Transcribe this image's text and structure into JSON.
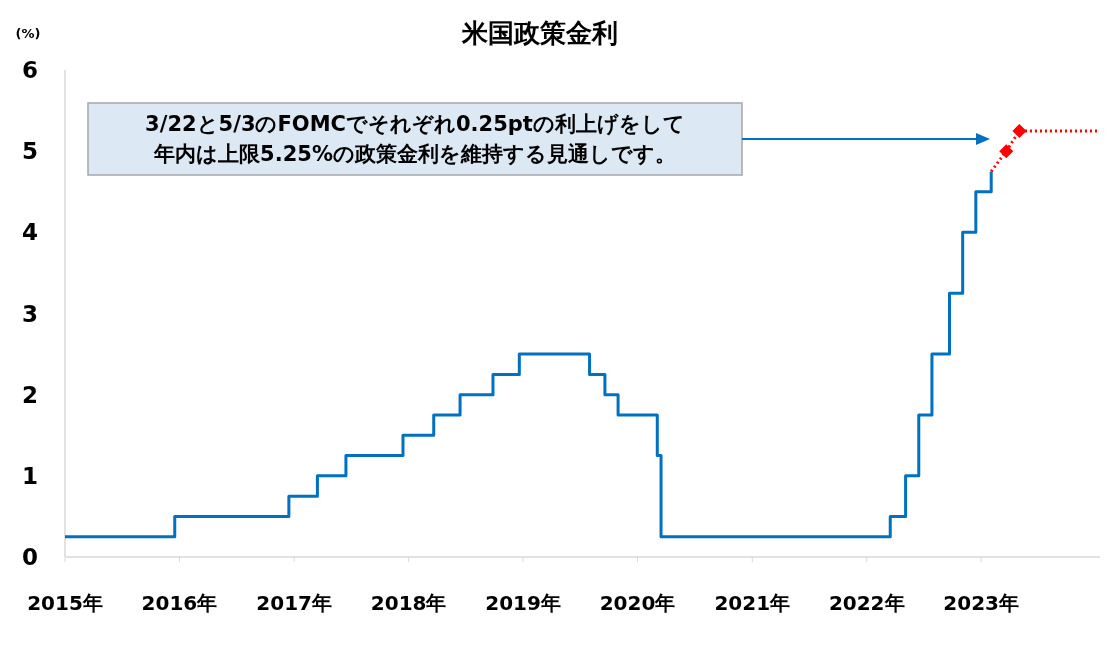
{
  "chart_data": {
    "type": "line",
    "title": "米国政策金利",
    "ylabel": "(%)",
    "annotations": [
      "3/22と5/3のFOMCでそれぞれ0.25ptの利上げをして",
      "年内は上限5.25%の政策金利を維持する見通しです。"
    ],
    "xlim": [
      "2015-01-01",
      "2024-01-15"
    ],
    "ylim": [
      0,
      6
    ],
    "yticks": [
      0,
      1,
      2,
      3,
      4,
      5,
      6
    ],
    "xticks": [
      {
        "value": "2015-01-01",
        "label": "2015年"
      },
      {
        "value": "2016-01-01",
        "label": "2016年"
      },
      {
        "value": "2017-01-01",
        "label": "2017年"
      },
      {
        "value": "2018-01-01",
        "label": "2018年"
      },
      {
        "value": "2019-01-01",
        "label": "2019年"
      },
      {
        "value": "2020-01-01",
        "label": "2020年"
      },
      {
        "value": "2021-01-01",
        "label": "2021年"
      },
      {
        "value": "2022-01-01",
        "label": "2022年"
      },
      {
        "value": "2023-01-01",
        "label": "2023年"
      }
    ],
    "series": [
      {
        "type": "step",
        "color": "#0070c0",
        "marker": "none",
        "line_style": "solid",
        "x": [
          "2015-01-01",
          "2015-12-17",
          "2016-12-15",
          "2017-03-16",
          "2017-06-15",
          "2017-12-14",
          "2018-03-22",
          "2018-06-14",
          "2018-09-27",
          "2018-12-20",
          "2019-08-01",
          "2019-09-19",
          "2019-10-31",
          "2020-03-04",
          "2020-03-16",
          "2022-03-17",
          "2022-05-05",
          "2022-06-16",
          "2022-07-28",
          "2022-09-22",
          "2022-11-03",
          "2022-12-15",
          "2023-02-02"
        ],
        "values": [
          0.25,
          0.5,
          0.75,
          1,
          1.25,
          1.5,
          1.75,
          2,
          2.25,
          2.5,
          2.25,
          2,
          1.75,
          1.25,
          0.25,
          0.5,
          1,
          1.75,
          2.5,
          3.25,
          4,
          4.5,
          4.75
        ]
      },
      {
        "type": "line",
        "color": "#ff0000",
        "marker": "none",
        "line_style": "dotted",
        "x": [
          "2023-02-02",
          "2023-03-22",
          "2023-05-03",
          "2024-01-15"
        ],
        "values": [
          4.75,
          5,
          5.25,
          5.25
        ]
      },
      {
        "type": "scatter",
        "color": "#ff0000",
        "marker": "diamond",
        "x": [
          "2023-03-22",
          "2023-05-03"
        ],
        "values": [
          5,
          5.25
        ]
      }
    ]
  }
}
